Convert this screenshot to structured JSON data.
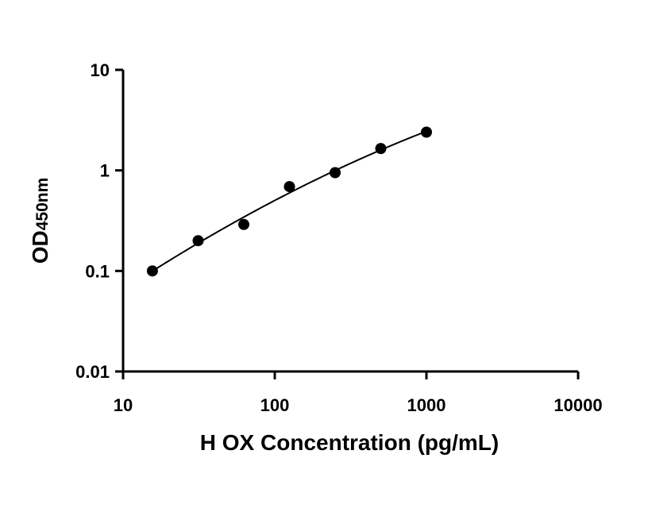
{
  "chart_data": {
    "type": "scatter",
    "xlabel": "H OX Concentration (pg/mL)",
    "ylabel": "OD",
    "ylabel_subscript": "450nm",
    "x_scale": "log",
    "y_scale": "log",
    "xlim": [
      10,
      10000
    ],
    "ylim": [
      0.01,
      10
    ],
    "x_ticks": [
      10,
      100,
      1000,
      10000
    ],
    "x_tick_labels": [
      "10",
      "100",
      "1000",
      "10000"
    ],
    "y_ticks": [
      0.01,
      0.1,
      1,
      10
    ],
    "y_tick_labels": [
      "0.01",
      "0.1",
      "1",
      "10"
    ],
    "grid": false,
    "series": [
      {
        "x": [
          15.6,
          31.25,
          62.5,
          125,
          250,
          500,
          1000
        ],
        "y": [
          0.1,
          0.2,
          0.29,
          0.69,
          0.95,
          1.65,
          2.4
        ],
        "fit": "smooth-curve",
        "color": "#000000"
      }
    ]
  }
}
